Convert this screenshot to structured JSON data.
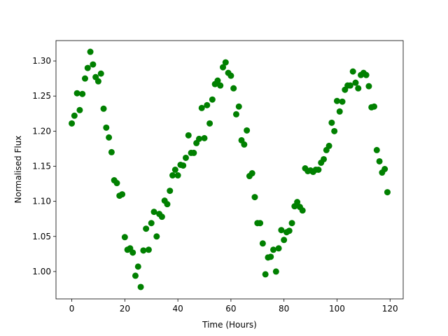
{
  "chart_data": {
    "type": "scatter",
    "xlabel": "Time (Hours)",
    "ylabel": "Normalised Flux",
    "color": "#008000",
    "x": [
      0,
      1,
      2,
      3,
      4,
      5,
      6,
      7,
      8,
      9,
      10,
      11,
      12,
      13,
      14,
      15,
      16,
      17,
      18,
      19,
      20,
      21,
      22,
      23,
      24,
      25,
      26,
      27,
      28,
      29,
      30,
      31,
      32,
      33,
      34,
      35,
      36,
      37,
      38,
      39,
      40,
      41,
      42,
      43,
      44,
      45,
      46,
      47,
      48,
      49,
      50,
      51,
      52,
      53,
      54,
      55,
      56,
      57,
      58,
      59,
      60,
      61,
      62,
      63,
      64,
      65,
      66,
      67,
      68,
      69,
      70,
      71,
      72,
      73,
      74,
      75,
      76,
      77,
      78,
      79,
      80,
      81,
      82,
      83,
      84,
      85,
      86,
      87,
      88,
      89,
      90,
      91,
      92,
      93,
      94,
      95,
      96,
      97,
      98,
      99,
      100,
      101,
      102,
      103,
      104,
      105,
      106,
      107,
      108,
      109,
      110,
      111,
      112,
      113,
      114,
      115,
      116,
      117,
      118,
      119
    ],
    "values": [
      1.211,
      1.222,
      1.254,
      1.23,
      1.253,
      1.275,
      1.29,
      1.313,
      1.295,
      1.277,
      1.271,
      1.282,
      1.232,
      1.205,
      1.191,
      1.17,
      1.13,
      1.126,
      1.108,
      1.11,
      1.049,
      1.031,
      1.033,
      1.027,
      0.994,
      1.007,
      0.978,
      1.03,
      1.061,
      1.031,
      1.069,
      1.085,
      1.05,
      1.082,
      1.078,
      1.101,
      1.096,
      1.115,
      1.137,
      1.145,
      1.137,
      1.152,
      1.151,
      1.162,
      1.194,
      1.169,
      1.169,
      1.183,
      1.189,
      1.233,
      1.19,
      1.237,
      1.211,
      1.245,
      1.267,
      1.272,
      1.265,
      1.291,
      1.298,
      1.283,
      1.279,
      1.261,
      1.224,
      1.235,
      1.187,
      1.181,
      1.201,
      1.136,
      1.14,
      1.106,
      1.069,
      1.069,
      1.04,
      0.996,
      1.02,
      1.021,
      1.031,
      1.0,
      1.033,
      1.059,
      1.045,
      1.056,
      1.058,
      1.069,
      1.093,
      1.099,
      1.092,
      1.087,
      1.147,
      1.143,
      1.144,
      1.142,
      1.145,
      1.145,
      1.155,
      1.16,
      1.173,
      1.179,
      1.212,
      1.2,
      1.243,
      1.228,
      1.242,
      1.259,
      1.265,
      1.265,
      1.285,
      1.269,
      1.261,
      1.28,
      1.283,
      1.28,
      1.264,
      1.234,
      1.235,
      1.173,
      1.157,
      1.141,
      1.146,
      1.113
    ],
    "xlim": [
      -5.95,
      124.95
    ],
    "xticks": [
      0,
      20,
      40,
      60,
      80,
      100,
      120
    ],
    "ylim": [
      0.961,
      1.329
    ],
    "yticks": [
      {
        "value": 1.0,
        "label": "1.00"
      },
      1.05,
      {
        "value": 1.1,
        "label": "1.10"
      },
      1.15,
      {
        "value": 1.2,
        "label": "1.20"
      },
      1.25,
      {
        "value": 1.3,
        "label": "1.30"
      }
    ]
  }
}
